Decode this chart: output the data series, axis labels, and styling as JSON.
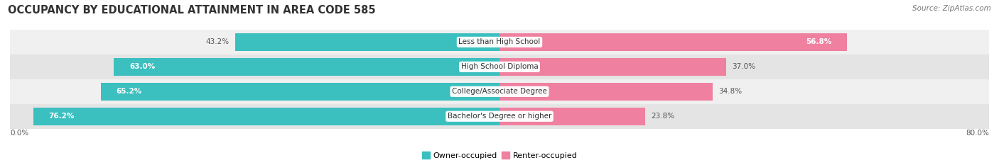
{
  "title": "OCCUPANCY BY EDUCATIONAL ATTAINMENT IN AREA CODE 585",
  "source": "Source: ZipAtlas.com",
  "categories": [
    "Less than High School",
    "High School Diploma",
    "College/Associate Degree",
    "Bachelor's Degree or higher"
  ],
  "owner_values": [
    43.2,
    63.0,
    65.2,
    76.2
  ],
  "renter_values": [
    56.8,
    37.0,
    34.8,
    23.8
  ],
  "owner_color": "#3BBFBF",
  "renter_color": "#F080A0",
  "row_bg_colors": [
    "#F0F0F0",
    "#E4E4E4"
  ],
  "x_left_label": "0.0%",
  "x_right_label": "80.0%",
  "legend_owner": "Owner-occupied",
  "legend_renter": "Renter-occupied",
  "title_fontsize": 10.5,
  "source_fontsize": 7.5,
  "bar_height": 0.72,
  "figsize": [
    14.06,
    2.33
  ],
  "dpi": 100,
  "max_pct": 80.0
}
